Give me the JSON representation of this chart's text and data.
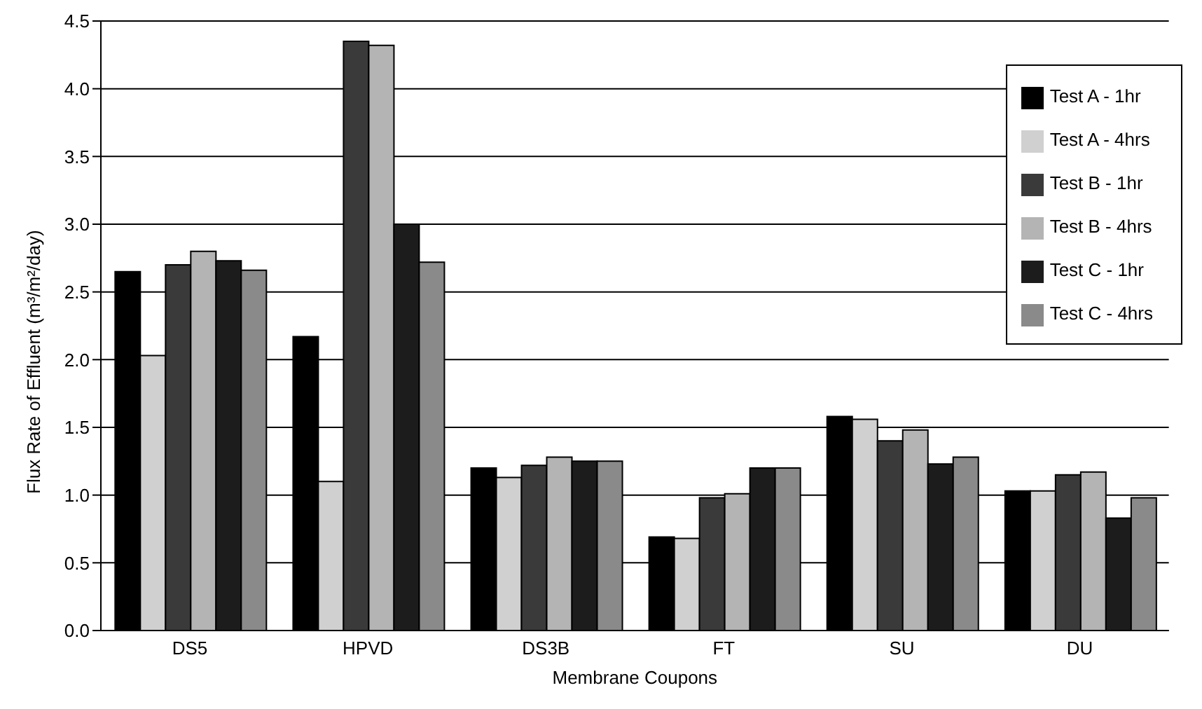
{
  "chart_data": {
    "type": "bar",
    "xlabel": "Membrane Coupons",
    "ylabel": "Flux Rate of Effluent (m³/m²/day)",
    "categories": [
      "DS5",
      "HPVD",
      "DS3B",
      "FT",
      "SU",
      "DU"
    ],
    "series": [
      {
        "name": "Test A - 1hr",
        "color": "#000000",
        "values": [
          2.65,
          2.17,
          1.2,
          0.69,
          1.58,
          1.03
        ]
      },
      {
        "name": "Test A - 4hrs",
        "color": "#d0d0d0",
        "values": [
          2.03,
          1.1,
          1.13,
          0.68,
          1.56,
          1.03
        ]
      },
      {
        "name": "Test B - 1hr",
        "color": "#3a3a3a",
        "values": [
          2.7,
          4.35,
          1.22,
          0.98,
          1.4,
          1.15
        ]
      },
      {
        "name": "Test B - 4hrs",
        "color": "#b4b4b4",
        "values": [
          2.8,
          4.32,
          1.28,
          1.01,
          1.48,
          1.17
        ]
      },
      {
        "name": "Test C - 1hr",
        "color": "#1c1c1c",
        "values": [
          2.73,
          3.0,
          1.25,
          1.2,
          1.23,
          0.83
        ]
      },
      {
        "name": "Test C - 4hrs",
        "color": "#8a8a8a",
        "values": [
          2.66,
          2.72,
          1.25,
          1.2,
          1.28,
          0.98
        ]
      }
    ],
    "ylim": [
      0,
      4.5
    ],
    "yticks": [
      {
        "value": 0,
        "label": "0.0"
      },
      0.5,
      {
        "value": 1,
        "label": "1.0"
      },
      1.5,
      {
        "value": 2,
        "label": "2.0"
      },
      2.5,
      {
        "value": 3,
        "label": "3.0"
      },
      3.5,
      {
        "value": 4,
        "label": "4.0"
      },
      4.5
    ],
    "grid": "y",
    "legend": "top right"
  }
}
